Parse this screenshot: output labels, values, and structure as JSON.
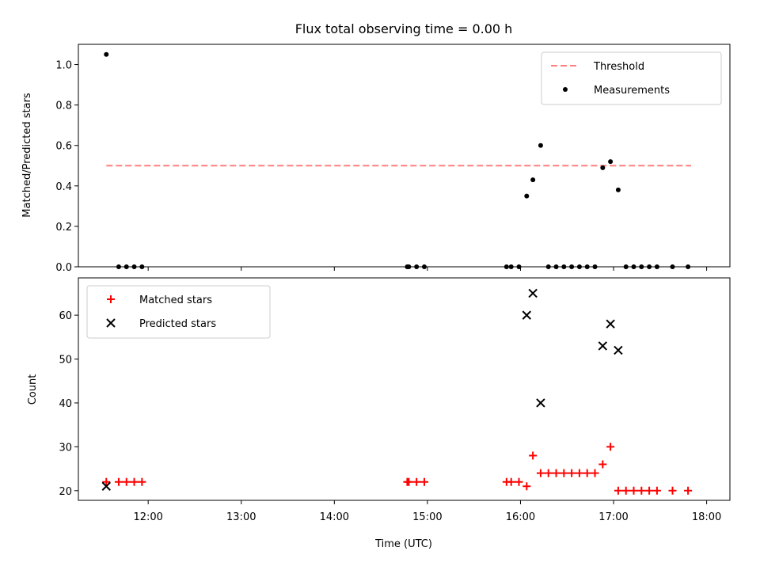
{
  "chart_data": [
    {
      "type": "scatter",
      "title": "Flux total observing time = 0.00 h",
      "xlabel": "",
      "ylabel": "Matched/Predicted stars",
      "ylim": [
        0,
        1.1
      ],
      "yticks": [
        "0.0",
        "0.2",
        "0.4",
        "0.6",
        "0.8",
        "1.0"
      ],
      "legend_position": "top-right",
      "threshold": {
        "name": "Threshold",
        "value": 0.5,
        "x_range": [
          "11:33",
          "17:50"
        ],
        "color": "#ff7f7f"
      },
      "series": [
        {
          "name": "Measurements",
          "color": "#000000",
          "points": [
            [
              "11:33",
              1.05
            ],
            [
              "11:41",
              0
            ],
            [
              "11:46",
              0
            ],
            [
              "11:51",
              0
            ],
            [
              "11:56",
              0
            ],
            [
              "14:47",
              0
            ],
            [
              "14:48",
              0
            ],
            [
              "14:53",
              0
            ],
            [
              "14:58",
              0
            ],
            [
              "15:51",
              0
            ],
            [
              "15:54",
              0
            ],
            [
              "15:59",
              0
            ],
            [
              "16:04",
              0.35
            ],
            [
              "16:08",
              0.43
            ],
            [
              "16:13",
              0.6
            ],
            [
              "16:18",
              0
            ],
            [
              "16:23",
              0
            ],
            [
              "16:28",
              0
            ],
            [
              "16:33",
              0
            ],
            [
              "16:38",
              0
            ],
            [
              "16:43",
              0
            ],
            [
              "16:48",
              0
            ],
            [
              "16:53",
              0.49
            ],
            [
              "16:58",
              0.52
            ],
            [
              "17:03",
              0.38
            ],
            [
              "17:08",
              0
            ],
            [
              "17:13",
              0
            ],
            [
              "17:18",
              0
            ],
            [
              "17:23",
              0
            ],
            [
              "17:28",
              0
            ],
            [
              "17:38",
              0
            ],
            [
              "17:48",
              0
            ]
          ]
        }
      ]
    },
    {
      "type": "scatter",
      "title": "",
      "xlabel": "Time (UTC)",
      "ylabel": "Count",
      "ylim": [
        17.8,
        68.5
      ],
      "yticks": [
        "20",
        "30",
        "40",
        "50",
        "60"
      ],
      "xlim": [
        "11:15",
        "18:15"
      ],
      "xticks": [
        "12:00",
        "13:00",
        "14:00",
        "15:00",
        "16:00",
        "17:00",
        "18:00"
      ],
      "legend_position": "top-left",
      "series": [
        {
          "name": "Matched stars",
          "marker": "plus",
          "color": "#ff0000",
          "points": [
            [
              "11:33",
              22
            ],
            [
              "11:41",
              22
            ],
            [
              "11:46",
              22
            ],
            [
              "11:51",
              22
            ],
            [
              "11:56",
              22
            ],
            [
              "14:47",
              22
            ],
            [
              "14:48",
              22
            ],
            [
              "14:53",
              22
            ],
            [
              "14:58",
              22
            ],
            [
              "15:51",
              22
            ],
            [
              "15:54",
              22
            ],
            [
              "15:59",
              22
            ],
            [
              "16:04",
              21
            ],
            [
              "16:08",
              28
            ],
            [
              "16:13",
              24
            ],
            [
              "16:18",
              24
            ],
            [
              "16:23",
              24
            ],
            [
              "16:28",
              24
            ],
            [
              "16:33",
              24
            ],
            [
              "16:38",
              24
            ],
            [
              "16:43",
              24
            ],
            [
              "16:48",
              24
            ],
            [
              "16:53",
              26
            ],
            [
              "16:58",
              30
            ],
            [
              "17:03",
              20
            ],
            [
              "17:08",
              20
            ],
            [
              "17:13",
              20
            ],
            [
              "17:18",
              20
            ],
            [
              "17:23",
              20
            ],
            [
              "17:28",
              20
            ],
            [
              "17:38",
              20
            ],
            [
              "17:48",
              20
            ]
          ]
        },
        {
          "name": "Predicted stars",
          "marker": "x",
          "color": "#000000",
          "points": [
            [
              "11:33",
              21
            ],
            [
              "16:04",
              60
            ],
            [
              "16:08",
              65
            ],
            [
              "16:13",
              40
            ],
            [
              "16:53",
              53
            ],
            [
              "16:58",
              58
            ],
            [
              "17:03",
              52
            ]
          ]
        }
      ]
    }
  ]
}
